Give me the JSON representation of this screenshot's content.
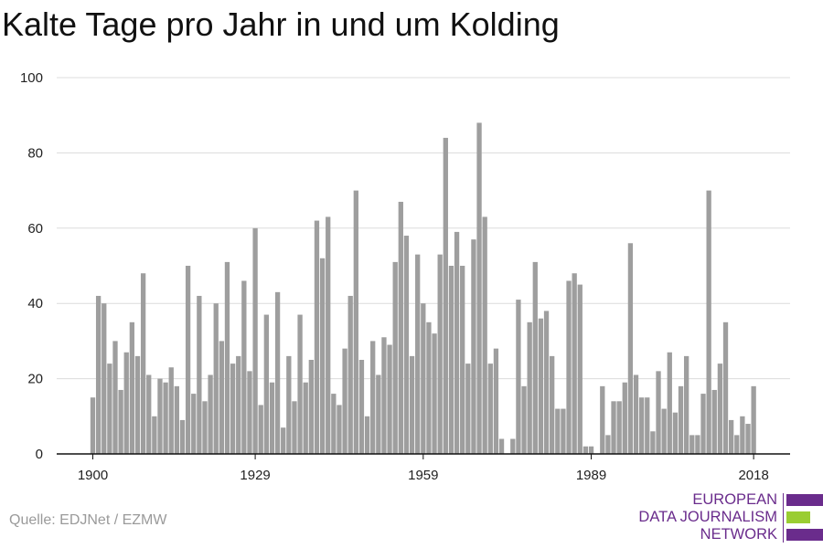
{
  "chart_data": {
    "type": "bar",
    "title": "Kalte Tage pro Jahr in und um Kolding",
    "xlabel": "",
    "ylabel": "",
    "ylim": [
      0,
      100
    ],
    "yticks": [
      0,
      20,
      40,
      60,
      80,
      100
    ],
    "xticks": [
      1900,
      1929,
      1959,
      1989,
      2018
    ],
    "grid": true,
    "legend": "none",
    "bar_color": "#9e9e9e",
    "x": [
      1900,
      1901,
      1902,
      1903,
      1904,
      1905,
      1906,
      1907,
      1908,
      1909,
      1910,
      1911,
      1912,
      1913,
      1914,
      1915,
      1916,
      1917,
      1918,
      1919,
      1920,
      1921,
      1922,
      1923,
      1924,
      1925,
      1926,
      1927,
      1928,
      1929,
      1930,
      1931,
      1932,
      1933,
      1934,
      1935,
      1936,
      1937,
      1938,
      1939,
      1940,
      1941,
      1942,
      1943,
      1944,
      1945,
      1946,
      1947,
      1948,
      1949,
      1950,
      1951,
      1952,
      1953,
      1954,
      1955,
      1956,
      1957,
      1958,
      1959,
      1960,
      1961,
      1962,
      1963,
      1964,
      1965,
      1966,
      1967,
      1968,
      1969,
      1970,
      1971,
      1972,
      1973,
      1974,
      1975,
      1976,
      1977,
      1978,
      1979,
      1980,
      1981,
      1982,
      1983,
      1984,
      1985,
      1986,
      1987,
      1988,
      1989,
      1990,
      1991,
      1992,
      1993,
      1994,
      1995,
      1996,
      1997,
      1998,
      1999,
      2000,
      2001,
      2002,
      2003,
      2004,
      2005,
      2006,
      2007,
      2008,
      2009,
      2010,
      2011,
      2012,
      2013,
      2014,
      2015,
      2016,
      2017,
      2018
    ],
    "values": [
      15,
      42,
      40,
      24,
      30,
      17,
      27,
      35,
      26,
      48,
      21,
      10,
      20,
      19,
      23,
      18,
      9,
      50,
      16,
      42,
      14,
      21,
      40,
      30,
      51,
      24,
      26,
      46,
      22,
      60,
      13,
      37,
      19,
      43,
      7,
      26,
      14,
      37,
      19,
      25,
      62,
      52,
      63,
      16,
      13,
      28,
      42,
      70,
      25,
      10,
      30,
      21,
      31,
      29,
      51,
      67,
      58,
      26,
      53,
      40,
      35,
      32,
      53,
      84,
      50,
      59,
      50,
      24,
      57,
      88,
      63,
      24,
      28,
      4,
      0,
      4,
      41,
      18,
      35,
      51,
      36,
      38,
      26,
      12,
      12,
      46,
      48,
      45,
      2,
      2,
      0,
      18,
      5,
      14,
      14,
      19,
      56,
      21,
      15,
      15,
      6,
      22,
      12,
      27,
      11,
      18,
      26,
      5,
      5,
      16,
      70,
      17,
      24,
      35,
      9,
      5,
      10,
      8,
      18
    ]
  },
  "footer": {
    "source": "Quelle: EDJNet / EZMW",
    "logo_line1": "EUROPEAN",
    "logo_line2": "DATA JOURNALISM",
    "logo_line3": "NETWORK",
    "logo_purple": "#6a2c8c",
    "logo_green": "#9acd32"
  }
}
